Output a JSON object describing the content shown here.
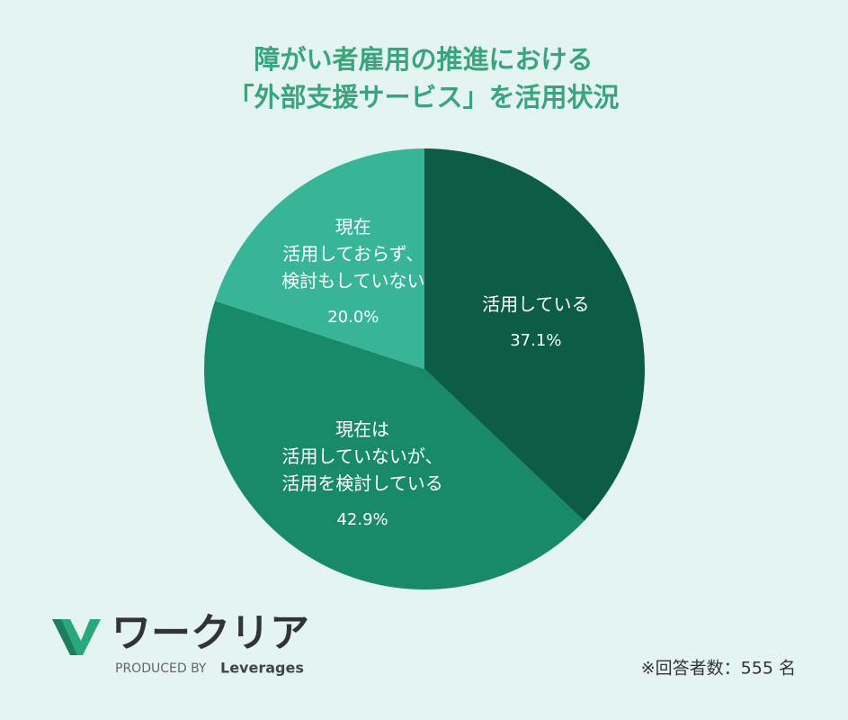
{
  "chart_data": {
    "type": "pie",
    "title": "障がい者雇用の推進における\n「外部支援サービス」を活用状況",
    "categories": [
      "活用している",
      "現在は\n活用していないが、\n活用を検討している",
      "現在\n活用しておらず、\n検討もしていない"
    ],
    "values": [
      37.1,
      42.9,
      20.0
    ],
    "value_labels": [
      "37.1%",
      "42.9%",
      "20.0%"
    ],
    "colors": [
      "#0d5c45",
      "#188a6a",
      "#37b596"
    ],
    "note": "※回答者数：555 名"
  },
  "logo": {
    "name": "ワークリア",
    "produced_by": "PRODUCED BY",
    "brand": "Leverages"
  }
}
